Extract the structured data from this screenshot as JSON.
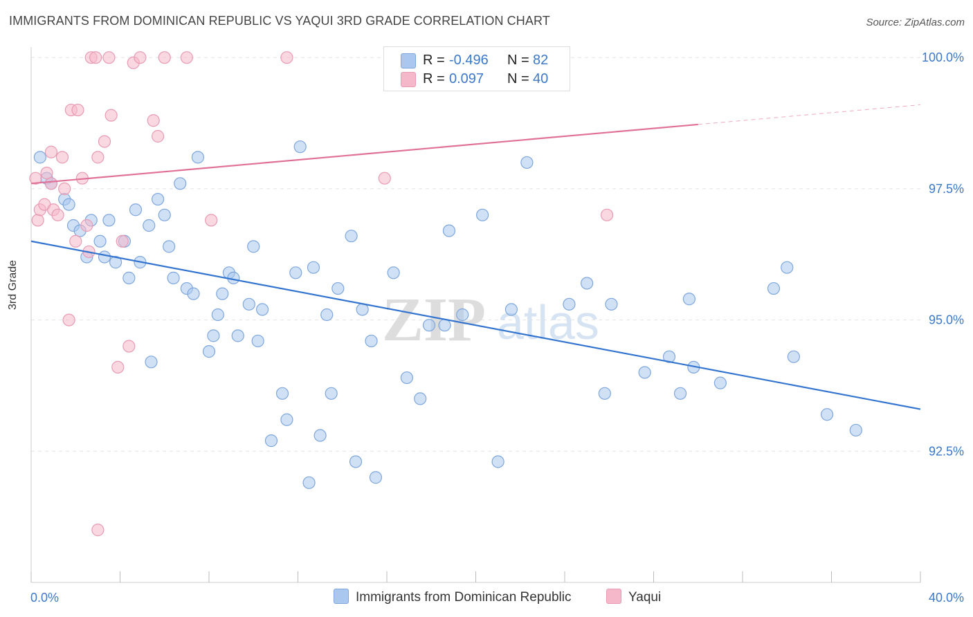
{
  "header": {
    "title": "IMMIGRANTS FROM DOMINICAN REPUBLIC VS YAQUI 3RD GRADE CORRELATION CHART",
    "source": "Source: ZipAtlas.com"
  },
  "watermark": {
    "zip": "ZIP",
    "atlas": "atlas"
  },
  "legend_top": [
    {
      "r_label": "R =",
      "r_value": "-0.496",
      "n_label": "N =",
      "n_value": "82",
      "color": "#aac8ef"
    },
    {
      "r_label": "R =",
      "r_value": "0.097",
      "n_label": "N =",
      "n_value": "40",
      "color": "#f5b8cb"
    }
  ],
  "legend_bottom": [
    {
      "label": "Immigrants from Dominican Republic",
      "color": "#aac8ef"
    },
    {
      "label": "Yaqui",
      "color": "#f5b8cb"
    }
  ],
  "chart_data": {
    "type": "scatter",
    "title": "IMMIGRANTS FROM DOMINICAN REPUBLIC VS YAQUI 3RD GRADE CORRELATION CHART",
    "xlabel": "",
    "ylabel": "3rd Grade",
    "xlim": [
      0,
      40
    ],
    "ylim": [
      90.0,
      100.2
    ],
    "x_tick_labels": [
      "0.0%",
      "40.0%"
    ],
    "y_ticks": [
      92.5,
      95.0,
      97.5,
      100.0
    ],
    "y_tick_labels": [
      "92.5%",
      "95.0%",
      "97.5%",
      "100.0%"
    ],
    "grid": true,
    "legend_position": "top-center",
    "series": [
      {
        "name": "Immigrants from Dominican Republic",
        "color": "#aac8ef",
        "stroke": "#7ea6dc",
        "trend_color": "#3274cf",
        "trend": {
          "x0": 0,
          "y0": 96.5,
          "x1": 40,
          "y1": 93.3,
          "solid_until": 40
        },
        "points": [
          [
            0.4,
            98.1
          ],
          [
            0.7,
            97.7
          ],
          [
            0.9,
            97.6
          ],
          [
            1.5,
            97.3
          ],
          [
            1.7,
            97.2
          ],
          [
            1.9,
            96.8
          ],
          [
            2.2,
            96.7
          ],
          [
            2.5,
            96.2
          ],
          [
            2.7,
            96.9
          ],
          [
            3.1,
            96.5
          ],
          [
            3.3,
            96.2
          ],
          [
            3.5,
            96.9
          ],
          [
            3.8,
            96.1
          ],
          [
            4.2,
            96.5
          ],
          [
            4.4,
            95.8
          ],
          [
            4.7,
            97.1
          ],
          [
            4.9,
            96.1
          ],
          [
            5.3,
            96.8
          ],
          [
            5.4,
            94.2
          ],
          [
            5.7,
            97.3
          ],
          [
            6.0,
            97.0
          ],
          [
            6.2,
            96.4
          ],
          [
            6.4,
            95.8
          ],
          [
            6.7,
            97.6
          ],
          [
            7.0,
            95.6
          ],
          [
            7.3,
            95.5
          ],
          [
            7.5,
            98.1
          ],
          [
            8.0,
            94.4
          ],
          [
            8.2,
            94.7
          ],
          [
            8.4,
            95.1
          ],
          [
            8.6,
            95.5
          ],
          [
            8.9,
            95.9
          ],
          [
            9.1,
            95.8
          ],
          [
            9.3,
            94.7
          ],
          [
            9.8,
            95.3
          ],
          [
            10.0,
            96.4
          ],
          [
            10.2,
            94.6
          ],
          [
            10.4,
            95.2
          ],
          [
            10.8,
            92.7
          ],
          [
            11.3,
            93.6
          ],
          [
            11.5,
            93.1
          ],
          [
            11.9,
            95.9
          ],
          [
            12.1,
            98.3
          ],
          [
            12.5,
            91.9
          ],
          [
            12.7,
            96.0
          ],
          [
            13.0,
            92.8
          ],
          [
            13.3,
            95.1
          ],
          [
            13.5,
            93.6
          ],
          [
            13.8,
            95.6
          ],
          [
            14.4,
            96.6
          ],
          [
            14.6,
            92.3
          ],
          [
            14.9,
            95.2
          ],
          [
            15.3,
            94.6
          ],
          [
            15.5,
            92.0
          ],
          [
            16.3,
            95.9
          ],
          [
            16.9,
            93.9
          ],
          [
            17.5,
            93.5
          ],
          [
            17.9,
            94.9
          ],
          [
            18.6,
            94.9
          ],
          [
            18.8,
            96.7
          ],
          [
            19.4,
            95.1
          ],
          [
            20.3,
            97.0
          ],
          [
            21.0,
            92.3
          ],
          [
            21.6,
            95.2
          ],
          [
            22.3,
            98.0
          ],
          [
            24.2,
            95.3
          ],
          [
            25.0,
            95.7
          ],
          [
            25.8,
            93.6
          ],
          [
            26.1,
            95.3
          ],
          [
            27.6,
            94.0
          ],
          [
            28.7,
            94.3
          ],
          [
            29.2,
            93.6
          ],
          [
            29.6,
            95.4
          ],
          [
            29.8,
            94.1
          ],
          [
            31.0,
            93.8
          ],
          [
            33.4,
            95.6
          ],
          [
            34.0,
            96.0
          ],
          [
            34.3,
            94.3
          ],
          [
            35.8,
            93.2
          ],
          [
            37.1,
            92.9
          ]
        ]
      },
      {
        "name": "Yaqui",
        "color": "#f5b8cb",
        "stroke": "#e89ab3",
        "trend_color": "#e07097",
        "trend": {
          "x0": 0,
          "y0": 97.6,
          "x1": 40,
          "y1": 99.1,
          "solid_until": 30
        },
        "points": [
          [
            0.2,
            97.7
          ],
          [
            0.3,
            96.9
          ],
          [
            0.4,
            97.1
          ],
          [
            0.6,
            97.2
          ],
          [
            0.7,
            97.8
          ],
          [
            0.9,
            97.6
          ],
          [
            0.9,
            98.2
          ],
          [
            1.0,
            97.1
          ],
          [
            1.2,
            97.0
          ],
          [
            1.4,
            98.1
          ],
          [
            1.5,
            97.5
          ],
          [
            1.7,
            95.0
          ],
          [
            1.8,
            99.0
          ],
          [
            2.0,
            96.5
          ],
          [
            2.1,
            99.0
          ],
          [
            2.3,
            97.7
          ],
          [
            2.5,
            96.8
          ],
          [
            2.6,
            96.3
          ],
          [
            2.7,
            100.0
          ],
          [
            2.9,
            100.0
          ],
          [
            3.0,
            98.1
          ],
          [
            3.0,
            91.0
          ],
          [
            3.3,
            98.4
          ],
          [
            3.5,
            100.0
          ],
          [
            3.6,
            98.9
          ],
          [
            3.9,
            94.1
          ],
          [
            4.1,
            96.5
          ],
          [
            4.4,
            94.5
          ],
          [
            4.6,
            99.9
          ],
          [
            4.9,
            100.0
          ],
          [
            5.5,
            98.8
          ],
          [
            5.7,
            98.5
          ],
          [
            6.0,
            100.0
          ],
          [
            7.0,
            100.0
          ],
          [
            8.1,
            96.9
          ],
          [
            11.5,
            100.0
          ],
          [
            15.9,
            97.7
          ],
          [
            25.9,
            97.0
          ]
        ]
      }
    ]
  }
}
